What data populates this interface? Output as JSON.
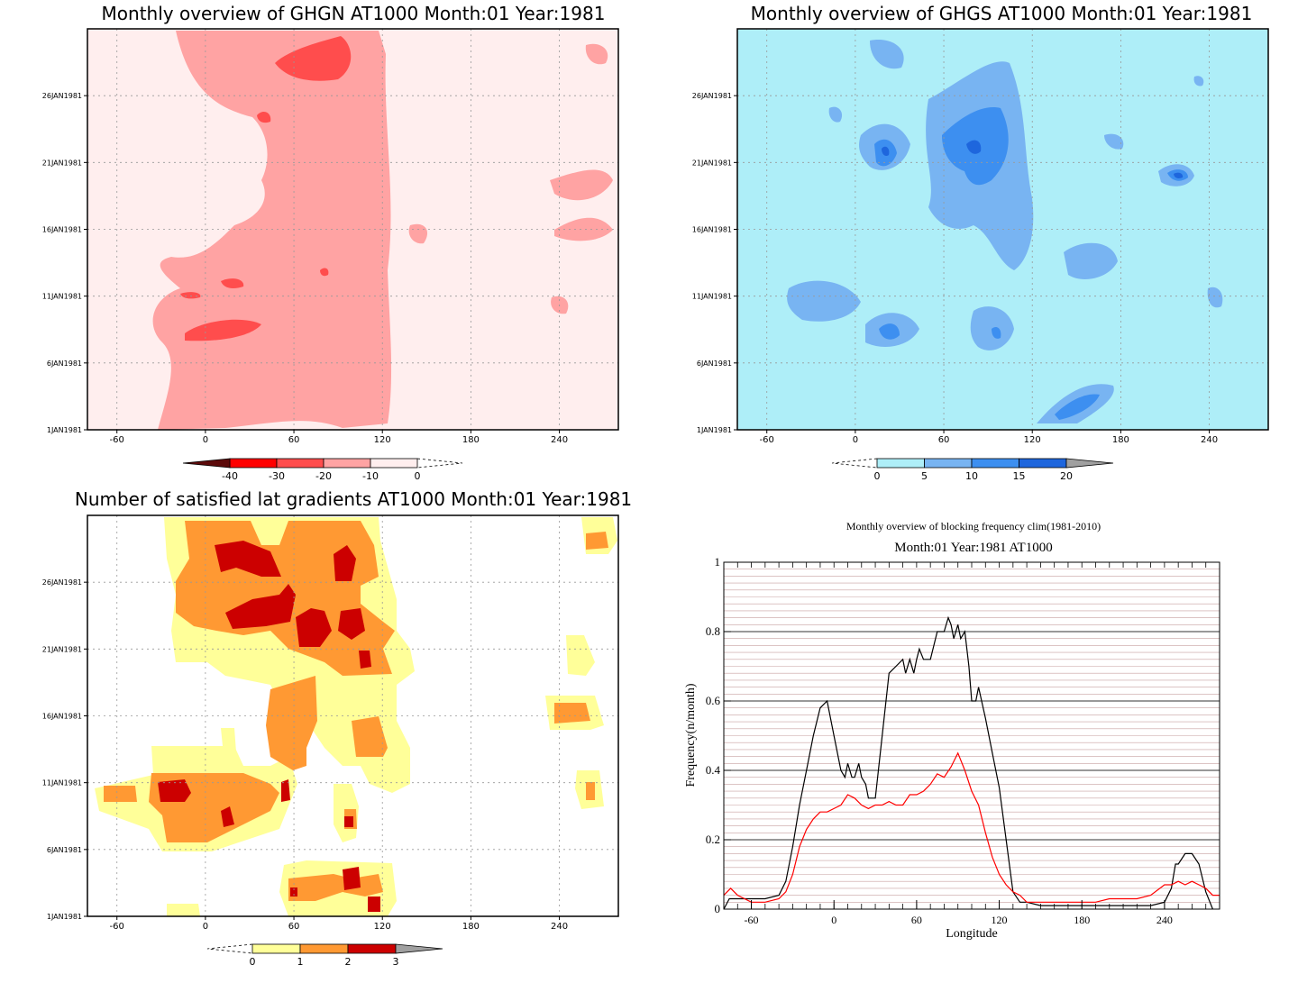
{
  "chart_data": [
    {
      "type": "heatmap",
      "title": "Monthly overview of GHGN AT1000 Month:01 Year:1981",
      "x_ticks": [
        -60,
        0,
        60,
        120,
        180,
        240
      ],
      "x_tick_labels": [
        "-60",
        "0",
        "60",
        "120",
        "180",
        "240"
      ],
      "y_ticks": [
        1,
        6,
        11,
        16,
        21,
        26
      ],
      "y_tick_labels": [
        "1JAN1981",
        "6JAN1981",
        "11JAN1981",
        "16JAN1981",
        "21JAN1981",
        "26JAN1981"
      ],
      "xlim": [
        -80,
        280
      ],
      "ylim": [
        1,
        31
      ],
      "grid": true,
      "colorbar": {
        "labels": [
          "-40",
          "-30",
          "-20",
          "-10",
          "0"
        ],
        "colors": [
          "#5c0a0a",
          "#ff0000",
          "#ff4d4d",
          "#ffa3a3",
          "#ffeeee"
        ]
      },
      "regions": [
        {
          "level": 0,
          "color": "#ffeeee",
          "label": "-10 to 0"
        },
        {
          "level": 1,
          "color": "#ffa3a3",
          "label": "-20 to -10"
        },
        {
          "level": 2,
          "color": "#ff4d4d",
          "label": "-30 to -20"
        }
      ]
    },
    {
      "type": "heatmap",
      "title": "Monthly overview of GHGS AT1000 Month:01 Year:1981",
      "x_ticks": [
        -60,
        0,
        60,
        120,
        180,
        240
      ],
      "x_tick_labels": [
        "-60",
        "0",
        "60",
        "120",
        "180",
        "240"
      ],
      "y_ticks": [
        1,
        6,
        11,
        16,
        21,
        26
      ],
      "y_tick_labels": [
        "1JAN1981",
        "6JAN1981",
        "11JAN1981",
        "16JAN1981",
        "21JAN1981",
        "26JAN1981"
      ],
      "xlim": [
        -80,
        280
      ],
      "ylim": [
        1,
        31
      ],
      "grid": true,
      "colorbar": {
        "labels": [
          "0",
          "5",
          "10",
          "15",
          "20"
        ],
        "colors": [
          "#aeeef8",
          "#78b4f2",
          "#3d8ff0",
          "#1e66dd",
          "#a0a0a0"
        ]
      },
      "regions": [
        {
          "level": 0,
          "color": "#aeeef8",
          "label": "0 to 5"
        },
        {
          "level": 1,
          "color": "#78b4f2",
          "label": "5 to 10"
        },
        {
          "level": 2,
          "color": "#3d8ff0",
          "label": "10 to 15"
        },
        {
          "level": 3,
          "color": "#1e66dd",
          "label": "15 to 20"
        }
      ]
    },
    {
      "type": "heatmap",
      "title": "Number of satisfied lat gradients AT1000 Month:01 Year:1981",
      "x_ticks": [
        -60,
        0,
        60,
        120,
        180,
        240
      ],
      "x_tick_labels": [
        "-60",
        "0",
        "60",
        "120",
        "180",
        "240"
      ],
      "y_ticks": [
        1,
        6,
        11,
        16,
        21,
        26
      ],
      "y_tick_labels": [
        "1JAN1981",
        "6JAN1981",
        "11JAN1981",
        "16JAN1981",
        "21JAN1981",
        "26JAN1981"
      ],
      "xlim": [
        -80,
        280
      ],
      "ylim": [
        1,
        31
      ],
      "grid": true,
      "colorbar": {
        "labels": [
          "0",
          "1",
          "2",
          "3"
        ],
        "colors": [
          "#ffff99",
          "#ff9933",
          "#cc0000",
          "#a0a0a0"
        ]
      },
      "regions": [
        {
          "level": 1,
          "color": "#ffff99",
          "label": "0 to 1"
        },
        {
          "level": 2,
          "color": "#ff9933",
          "label": "1 to 2"
        },
        {
          "level": 3,
          "color": "#cc0000",
          "label": "2 to 3"
        }
      ]
    },
    {
      "type": "line",
      "title": "Monthly overview of blocking frequency clim(1981-2010)",
      "subtitle": "Month:01 Year:1981  AT1000",
      "xlabel": "Longitude",
      "ylabel": "Frequency(n/month)",
      "xlim": [
        -80,
        280
      ],
      "ylim": [
        0,
        1
      ],
      "x_ticks": [
        -60,
        0,
        60,
        120,
        180,
        240
      ],
      "x_tick_labels": [
        "-60",
        "0",
        "60",
        "120",
        "180",
        "240"
      ],
      "y_ticks": [
        0,
        0.2,
        0.4,
        0.6,
        0.8,
        1
      ],
      "y_tick_labels": [
        "0",
        "0.2",
        "0.4",
        "0.6",
        "0.8",
        "1"
      ],
      "grid": true,
      "series": [
        {
          "color": "#000000",
          "x": [
            -80,
            -76,
            -70,
            -60,
            -50,
            -40,
            -35,
            -30,
            -25,
            -20,
            -15,
            -10,
            -5,
            0,
            5,
            8,
            10,
            13,
            15,
            18,
            20,
            23,
            25,
            28,
            30,
            35,
            40,
            45,
            50,
            52,
            55,
            58,
            60,
            62,
            65,
            70,
            75,
            80,
            83,
            85,
            87,
            90,
            92,
            95,
            98,
            100,
            103,
            105,
            110,
            115,
            120,
            125,
            130,
            135,
            140,
            150,
            160,
            170,
            180,
            190,
            200,
            210,
            220,
            230,
            240,
            245,
            248,
            250,
            255,
            260,
            265,
            270,
            275
          ],
          "y": [
            0.0,
            0.03,
            0.03,
            0.03,
            0.03,
            0.04,
            0.08,
            0.18,
            0.3,
            0.4,
            0.5,
            0.58,
            0.6,
            0.5,
            0.4,
            0.38,
            0.42,
            0.38,
            0.38,
            0.42,
            0.38,
            0.36,
            0.32,
            0.32,
            0.32,
            0.5,
            0.68,
            0.7,
            0.72,
            0.68,
            0.72,
            0.68,
            0.72,
            0.75,
            0.72,
            0.72,
            0.8,
            0.8,
            0.84,
            0.82,
            0.78,
            0.82,
            0.78,
            0.8,
            0.7,
            0.6,
            0.6,
            0.64,
            0.55,
            0.45,
            0.35,
            0.2,
            0.05,
            0.02,
            0.02,
            0.01,
            0.01,
            0.01,
            0.01,
            0.01,
            0.01,
            0.01,
            0.01,
            0.01,
            0.02,
            0.06,
            0.13,
            0.13,
            0.16,
            0.16,
            0.13,
            0.05,
            0.0
          ]
        },
        {
          "color": "#ff0000",
          "x": [
            -80,
            -75,
            -70,
            -60,
            -50,
            -40,
            -35,
            -30,
            -25,
            -20,
            -15,
            -10,
            -5,
            0,
            5,
            10,
            15,
            20,
            25,
            30,
            35,
            40,
            45,
            50,
            55,
            60,
            65,
            70,
            75,
            80,
            85,
            90,
            95,
            100,
            105,
            110,
            115,
            120,
            125,
            130,
            135,
            140,
            150,
            160,
            170,
            180,
            190,
            200,
            210,
            220,
            230,
            240,
            245,
            250,
            255,
            260,
            265,
            270,
            275,
            280
          ],
          "y": [
            0.04,
            0.06,
            0.04,
            0.02,
            0.02,
            0.03,
            0.05,
            0.1,
            0.18,
            0.23,
            0.26,
            0.28,
            0.28,
            0.29,
            0.3,
            0.33,
            0.32,
            0.3,
            0.29,
            0.3,
            0.3,
            0.31,
            0.3,
            0.3,
            0.33,
            0.33,
            0.34,
            0.36,
            0.39,
            0.38,
            0.41,
            0.45,
            0.4,
            0.34,
            0.3,
            0.22,
            0.15,
            0.1,
            0.07,
            0.05,
            0.04,
            0.02,
            0.02,
            0.02,
            0.02,
            0.02,
            0.02,
            0.03,
            0.03,
            0.03,
            0.04,
            0.07,
            0.07,
            0.08,
            0.07,
            0.08,
            0.07,
            0.06,
            0.04,
            0.04
          ]
        }
      ]
    }
  ]
}
